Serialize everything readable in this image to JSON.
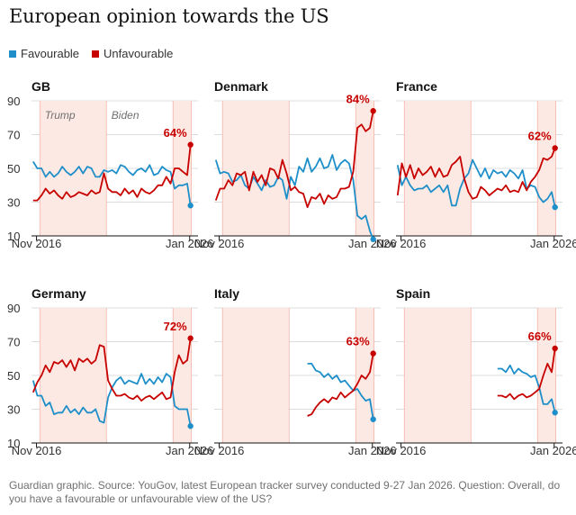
{
  "header": {
    "title": "European opinion towards the US"
  },
  "legend": {
    "favourable": "Favourable",
    "unfavourable": "Unfavourable"
  },
  "footnote": "Guardian graphic. Source: YouGov, latest European tracker survey conducted 9-27 Jan 2026. Question: Overall, do you have a favourable or unfavourable view of the US?",
  "colors": {
    "favourable": "#1e8fc9",
    "unfavourable": "#c70000",
    "trump_shade": "#fde9e4",
    "gridline": "#dcdcdc",
    "axis": "#121212"
  },
  "chart_data": {
    "type": "line",
    "ylim": [
      10,
      90
    ],
    "yticks": [
      10,
      30,
      50,
      70,
      90
    ],
    "x_range": [
      2016.5,
      2026.5
    ],
    "x_ticks": [
      {
        "x": 2016.8,
        "label": "Nov 2016"
      },
      {
        "x": 2026.0,
        "label": "Jan 2026"
      }
    ],
    "periods": [
      {
        "name": "Trump",
        "start": 2017.0,
        "end": 2021.0
      },
      {
        "name": "Biden",
        "start": 2021.0,
        "end": 2025.0
      },
      {
        "name": "Trump",
        "start": 2025.0,
        "end": 2026.1
      }
    ],
    "period_labels": {
      "trump": "Trump",
      "biden": "Biden"
    },
    "panels": [
      {
        "name": "GB",
        "end_label": "64%",
        "end_value": 64,
        "series": [
          {
            "name": "Favourable",
            "x": [
              2016.6,
              2016.85,
              2017.1,
              2017.35,
              2017.6,
              2017.85,
              2018.1,
              2018.35,
              2018.6,
              2018.85,
              2019.1,
              2019.35,
              2019.6,
              2019.85,
              2020.1,
              2020.35,
              2020.6,
              2020.85,
              2021.1,
              2021.35,
              2021.6,
              2021.85,
              2022.1,
              2022.35,
              2022.6,
              2022.85,
              2023.1,
              2023.35,
              2023.6,
              2023.85,
              2024.1,
              2024.35,
              2024.6,
              2024.85,
              2025.1,
              2025.35,
              2025.6,
              2025.85,
              2026.05
            ],
            "values": [
              54,
              50,
              50,
              45,
              48,
              45,
              47,
              51,
              48,
              46,
              48,
              51,
              47,
              51,
              50,
              45,
              45,
              49,
              48,
              49,
              47,
              52,
              51,
              48,
              46,
              49,
              50,
              48,
              52,
              46,
              47,
              51,
              49,
              48,
              38,
              40,
              40,
              41,
              28
            ]
          },
          {
            "name": "Unfavourable",
            "x": [
              2016.6,
              2016.85,
              2017.1,
              2017.35,
              2017.6,
              2017.85,
              2018.1,
              2018.35,
              2018.6,
              2018.85,
              2019.1,
              2019.35,
              2019.6,
              2019.85,
              2020.1,
              2020.35,
              2020.6,
              2020.85,
              2021.1,
              2021.35,
              2021.6,
              2021.85,
              2022.1,
              2022.35,
              2022.6,
              2022.85,
              2023.1,
              2023.35,
              2023.6,
              2023.85,
              2024.1,
              2024.35,
              2024.6,
              2024.85,
              2025.1,
              2025.35,
              2025.6,
              2025.85,
              2026.05
            ],
            "values": [
              31,
              31,
              34,
              38,
              35,
              37,
              34,
              32,
              36,
              33,
              34,
              36,
              35,
              34,
              37,
              35,
              36,
              47,
              38,
              36,
              36,
              34,
              38,
              35,
              37,
              33,
              38,
              36,
              35,
              37,
              40,
              40,
              45,
              41,
              50,
              50,
              48,
              46,
              64
            ]
          }
        ]
      },
      {
        "name": "Denmark",
        "end_label": "84%",
        "end_value": 84,
        "series": [
          {
            "name": "Favourable",
            "x": [
              2016.6,
              2016.85,
              2017.1,
              2017.35,
              2017.6,
              2017.85,
              2018.1,
              2018.35,
              2018.6,
              2018.85,
              2019.1,
              2019.35,
              2019.6,
              2019.85,
              2020.1,
              2020.35,
              2020.6,
              2020.85,
              2021.1,
              2021.35,
              2021.6,
              2021.85,
              2022.1,
              2022.35,
              2022.6,
              2022.85,
              2023.1,
              2023.35,
              2023.6,
              2023.85,
              2024.1,
              2024.35,
              2024.6,
              2024.85,
              2025.1,
              2025.35,
              2025.6,
              2025.85,
              2026.05
            ],
            "values": [
              55,
              47,
              48,
              47,
              42,
              43,
              46,
              40,
              38,
              45,
              41,
              37,
              43,
              39,
              40,
              45,
              43,
              32,
              45,
              40,
              51,
              48,
              56,
              48,
              51,
              56,
              50,
              51,
              58,
              49,
              53,
              55,
              53,
              43,
              22,
              20,
              22,
              13,
              8
            ]
          },
          {
            "name": "Unfavourable",
            "x": [
              2016.6,
              2016.85,
              2017.1,
              2017.35,
              2017.6,
              2017.85,
              2018.1,
              2018.35,
              2018.6,
              2018.85,
              2019.1,
              2019.35,
              2019.6,
              2019.85,
              2020.1,
              2020.35,
              2020.6,
              2020.85,
              2021.1,
              2021.35,
              2021.6,
              2021.85,
              2022.1,
              2022.35,
              2022.6,
              2022.85,
              2023.1,
              2023.35,
              2023.6,
              2023.85,
              2024.1,
              2024.35,
              2024.6,
              2024.85,
              2025.1,
              2025.35,
              2025.6,
              2025.85,
              2026.05
            ],
            "values": [
              31,
              38,
              38,
              43,
              40,
              47,
              46,
              48,
              37,
              48,
              42,
              46,
              40,
              50,
              49,
              44,
              55,
              47,
              37,
              39,
              36,
              35,
              27,
              33,
              32,
              35,
              29,
              34,
              32,
              33,
              38,
              38,
              39,
              48,
              74,
              76,
              72,
              74,
              84
            ]
          }
        ]
      },
      {
        "name": "France",
        "end_label": "62%",
        "end_value": 62,
        "series": [
          {
            "name": "Favourable",
            "x": [
              2016.6,
              2016.85,
              2017.1,
              2017.35,
              2017.6,
              2017.85,
              2018.1,
              2018.35,
              2018.6,
              2018.85,
              2019.1,
              2019.35,
              2019.6,
              2019.85,
              2020.1,
              2020.35,
              2020.6,
              2020.85,
              2021.1,
              2021.35,
              2021.6,
              2021.85,
              2022.1,
              2022.35,
              2022.6,
              2022.85,
              2023.1,
              2023.35,
              2023.6,
              2023.85,
              2024.1,
              2024.35,
              2024.6,
              2024.85,
              2025.1,
              2025.35,
              2025.6,
              2025.85,
              2026.05
            ],
            "values": [
              52,
              40,
              45,
              40,
              37,
              38,
              38,
              40,
              36,
              38,
              40,
              36,
              40,
              28,
              28,
              38,
              44,
              47,
              55,
              50,
              45,
              50,
              44,
              49,
              47,
              48,
              45,
              49,
              47,
              44,
              49,
              38,
              40,
              39,
              33,
              30,
              32,
              36,
              27
            ]
          },
          {
            "name": "Unfavourable",
            "x": [
              2016.6,
              2016.85,
              2017.1,
              2017.35,
              2017.6,
              2017.85,
              2018.1,
              2018.35,
              2018.6,
              2018.85,
              2019.1,
              2019.35,
              2019.6,
              2019.85,
              2020.1,
              2020.35,
              2020.6,
              2020.85,
              2021.1,
              2021.35,
              2021.6,
              2021.85,
              2022.1,
              2022.35,
              2022.6,
              2022.85,
              2023.1,
              2023.35,
              2023.6,
              2023.85,
              2024.1,
              2024.35,
              2024.6,
              2024.85,
              2025.1,
              2025.35,
              2025.6,
              2025.85,
              2026.05
            ],
            "values": [
              34,
              53,
              45,
              52,
              44,
              50,
              46,
              48,
              51,
              45,
              50,
              45,
              46,
              52,
              54,
              57,
              44,
              36,
              32,
              33,
              39,
              37,
              34,
              36,
              38,
              37,
              40,
              36,
              37,
              36,
              42,
              37,
              42,
              45,
              49,
              56,
              55,
              57,
              62
            ]
          }
        ]
      },
      {
        "name": "Germany",
        "end_label": "72%",
        "end_value": 72,
        "series": [
          {
            "name": "Favourable",
            "x": [
              2016.6,
              2016.85,
              2017.1,
              2017.35,
              2017.6,
              2017.85,
              2018.1,
              2018.35,
              2018.6,
              2018.85,
              2019.1,
              2019.35,
              2019.6,
              2019.85,
              2020.1,
              2020.35,
              2020.6,
              2020.85,
              2021.1,
              2021.35,
              2021.6,
              2021.85,
              2022.1,
              2022.35,
              2022.6,
              2022.85,
              2023.1,
              2023.35,
              2023.6,
              2023.85,
              2024.1,
              2024.35,
              2024.6,
              2024.85,
              2025.1,
              2025.35,
              2025.6,
              2025.85,
              2026.05
            ],
            "values": [
              47,
              38,
              38,
              32,
              34,
              27,
              28,
              28,
              32,
              28,
              30,
              27,
              31,
              28,
              28,
              30,
              23,
              22,
              37,
              43,
              47,
              49,
              45,
              47,
              46,
              45,
              51,
              45,
              48,
              45,
              49,
              46,
              51,
              49,
              32,
              30,
              30,
              30,
              20
            ]
          },
          {
            "name": "Unfavourable",
            "x": [
              2016.6,
              2016.85,
              2017.1,
              2017.35,
              2017.6,
              2017.85,
              2018.1,
              2018.35,
              2018.6,
              2018.85,
              2019.1,
              2019.35,
              2019.6,
              2019.85,
              2020.1,
              2020.35,
              2020.6,
              2020.85,
              2021.1,
              2021.35,
              2021.6,
              2021.85,
              2022.1,
              2022.35,
              2022.6,
              2022.85,
              2023.1,
              2023.35,
              2023.6,
              2023.85,
              2024.1,
              2024.35,
              2024.6,
              2024.85,
              2025.1,
              2025.35,
              2025.6,
              2025.85,
              2026.05
            ],
            "values": [
              40,
              46,
              50,
              56,
              52,
              58,
              57,
              59,
              55,
              59,
              53,
              60,
              58,
              60,
              57,
              59,
              68,
              67,
              47,
              42,
              38,
              38,
              39,
              37,
              36,
              38,
              35,
              37,
              38,
              36,
              38,
              40,
              36,
              37,
              52,
              62,
              57,
              59,
              72
            ]
          }
        ]
      },
      {
        "name": "Italy",
        "end_label": "63%",
        "end_value": 63,
        "series": [
          {
            "name": "Favourable",
            "x": [
              2022.1,
              2022.35,
              2022.6,
              2022.85,
              2023.1,
              2023.35,
              2023.6,
              2023.85,
              2024.1,
              2024.35,
              2024.6,
              2024.85,
              2025.1,
              2025.35,
              2025.6,
              2025.85,
              2026.05
            ],
            "values": [
              57,
              57,
              53,
              52,
              49,
              51,
              48,
              50,
              46,
              47,
              44,
              41,
              42,
              38,
              35,
              36,
              24
            ]
          },
          {
            "name": "Unfavourable",
            "x": [
              2022.1,
              2022.35,
              2022.6,
              2022.85,
              2023.1,
              2023.35,
              2023.6,
              2023.85,
              2024.1,
              2024.35,
              2024.6,
              2024.85,
              2025.1,
              2025.35,
              2025.6,
              2025.85,
              2026.05
            ],
            "values": [
              26,
              27,
              31,
              34,
              36,
              34,
              37,
              36,
              40,
              37,
              39,
              41,
              45,
              50,
              48,
              52,
              63
            ]
          }
        ]
      },
      {
        "name": "Spain",
        "end_label": "66%",
        "end_value": 66,
        "series": [
          {
            "name": "Favourable",
            "x": [
              2022.6,
              2022.85,
              2023.1,
              2023.35,
              2023.6,
              2023.85,
              2024.1,
              2024.35,
              2024.6,
              2024.85,
              2025.1,
              2025.35,
              2025.6,
              2025.85,
              2026.05
            ],
            "values": [
              54,
              54,
              52,
              56,
              51,
              54,
              52,
              51,
              49,
              50,
              43,
              33,
              33,
              36,
              28
            ]
          },
          {
            "name": "Unfavourable",
            "x": [
              2022.6,
              2022.85,
              2023.1,
              2023.35,
              2023.6,
              2023.85,
              2024.1,
              2024.35,
              2024.6,
              2024.85,
              2025.1,
              2025.35,
              2025.6,
              2025.85,
              2026.05
            ],
            "values": [
              38,
              38,
              37,
              39,
              36,
              38,
              39,
              37,
              38,
              40,
              42,
              50,
              57,
              52,
              66
            ]
          }
        ]
      }
    ]
  }
}
